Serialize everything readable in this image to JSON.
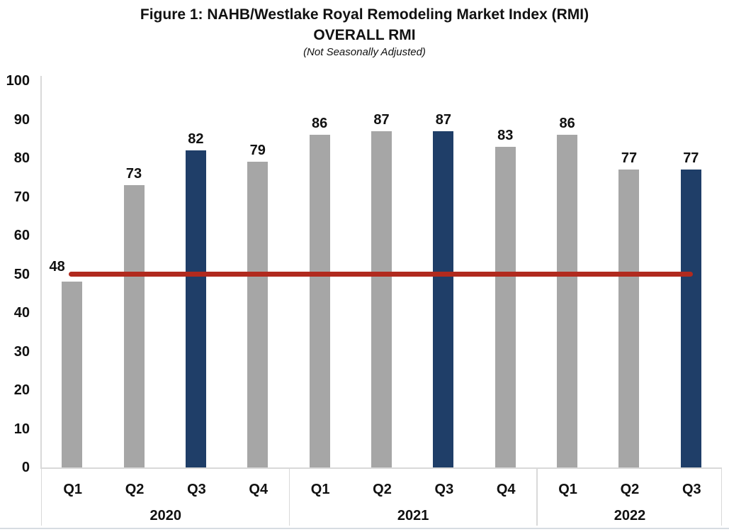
{
  "title": {
    "line1": "Figure 1: NAHB/Westlake Royal Remodeling Market Index (RMI)",
    "line2": "OVERALL RMI",
    "line3": "(Not Seasonally Adjusted)"
  },
  "chart_data": {
    "type": "bar",
    "title": "Figure 1: NAHB/Westlake Royal Remodeling Market Index (RMI)",
    "subtitle": "OVERALL RMI",
    "note": "(Not Seasonally Adjusted)",
    "ylim": [
      0,
      100
    ],
    "grid": false,
    "y_ticks": [
      100,
      90,
      80,
      70,
      60,
      50,
      40,
      30,
      20,
      10,
      0
    ],
    "groups": [
      {
        "year": "2020",
        "quarters": [
          "Q1",
          "Q2",
          "Q3",
          "Q4"
        ]
      },
      {
        "year": "2021",
        "quarters": [
          "Q1",
          "Q2",
          "Q3",
          "Q4"
        ]
      },
      {
        "year": "2022",
        "quarters": [
          "Q1",
          "Q2",
          "Q3"
        ]
      }
    ],
    "points": [
      {
        "year": "2020",
        "quarter": "Q1",
        "value": 48,
        "color": "gray"
      },
      {
        "year": "2020",
        "quarter": "Q2",
        "value": 73,
        "color": "gray"
      },
      {
        "year": "2020",
        "quarter": "Q3",
        "value": 82,
        "color": "blue"
      },
      {
        "year": "2020",
        "quarter": "Q4",
        "value": 79,
        "color": "gray"
      },
      {
        "year": "2021",
        "quarter": "Q1",
        "value": 86,
        "color": "gray"
      },
      {
        "year": "2021",
        "quarter": "Q2",
        "value": 87,
        "color": "gray"
      },
      {
        "year": "2021",
        "quarter": "Q3",
        "value": 87,
        "color": "blue"
      },
      {
        "year": "2021",
        "quarter": "Q4",
        "value": 83,
        "color": "gray"
      },
      {
        "year": "2022",
        "quarter": "Q1",
        "value": 86,
        "color": "gray"
      },
      {
        "year": "2022",
        "quarter": "Q2",
        "value": 77,
        "color": "gray"
      },
      {
        "year": "2022",
        "quarter": "Q3",
        "value": 77,
        "color": "blue"
      }
    ],
    "reference_line": {
      "value": 50,
      "color": "#B12A1E"
    },
    "colors": {
      "gray": "#A6A6A6",
      "blue": "#1F3E68",
      "text": "#111111",
      "axis": "#d9d9d9"
    }
  }
}
